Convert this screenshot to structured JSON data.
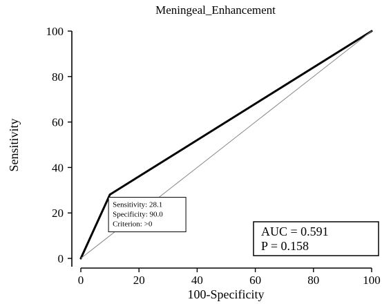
{
  "chart_data": {
    "type": "line",
    "title": "Meningeal_Enhancement",
    "xlabel": "100-Specificity",
    "ylabel": "Sensitivity",
    "xlim": [
      0,
      100
    ],
    "ylim": [
      0,
      100
    ],
    "x_ticks": [
      0,
      20,
      40,
      60,
      80,
      100
    ],
    "y_ticks": [
      0,
      20,
      40,
      60,
      80,
      100
    ],
    "series": [
      {
        "kind": "roc",
        "color": "#000000",
        "points": [
          [
            0,
            0
          ],
          [
            10.0,
            28.1
          ],
          [
            100,
            100
          ]
        ]
      },
      {
        "kind": "reference-diagonal",
        "color": "#888888",
        "points": [
          [
            0,
            0
          ],
          [
            100,
            100
          ]
        ]
      }
    ],
    "operating_point": {
      "x": 10.0,
      "y": 28.1,
      "lines": [
        "Sensitivity: 28.1",
        "Specificity: 90.0",
        "Criterion: >0"
      ]
    },
    "stats": {
      "auc": "AUC = 0.591",
      "p": "P = 0.158"
    },
    "grid": false
  }
}
